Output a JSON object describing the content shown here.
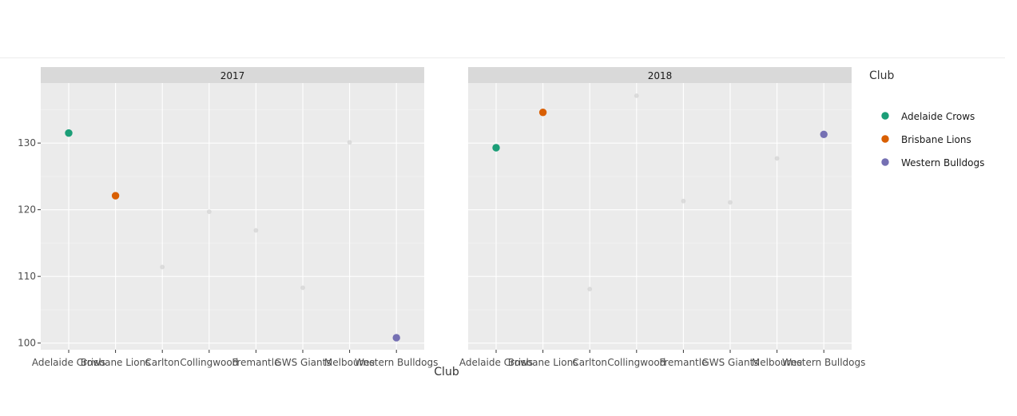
{
  "chart_data": {
    "type": "scatter",
    "facet_by": "Year",
    "xlabel": "Club",
    "ylabel": "",
    "ylim": [
      99,
      139
    ],
    "yticks": [
      100,
      110,
      120,
      130
    ],
    "categories": [
      "Adelaide Crows",
      "Brisbane Lions",
      "Carlton",
      "Collingwood",
      "Fremantle",
      "GWS Giants",
      "Melbourne",
      "Western Bulldogs"
    ],
    "legend": {
      "title": "Club",
      "position": "right",
      "entries": [
        {
          "name": "Adelaide Crows",
          "color": "#1b9e77"
        },
        {
          "name": "Brisbane Lions",
          "color": "#d95f02"
        },
        {
          "name": "Western Bulldogs",
          "color": "#7570b3"
        }
      ]
    },
    "muted_color": "#d3d3d3",
    "grid": true,
    "panels": [
      {
        "title": "2017",
        "points": [
          {
            "x": "Adelaide Crows",
            "y": 131.5,
            "highlight": true
          },
          {
            "x": "Brisbane Lions",
            "y": 122.1,
            "highlight": true
          },
          {
            "x": "Carlton",
            "y": 111.4,
            "highlight": false
          },
          {
            "x": "Collingwood",
            "y": 119.7,
            "highlight": false
          },
          {
            "x": "Fremantle",
            "y": 116.9,
            "highlight": false
          },
          {
            "x": "GWS Giants",
            "y": 108.3,
            "highlight": false
          },
          {
            "x": "Melbourne",
            "y": 130.1,
            "highlight": false
          },
          {
            "x": "Western Bulldogs",
            "y": 100.8,
            "highlight": true
          }
        ]
      },
      {
        "title": "2018",
        "points": [
          {
            "x": "Adelaide Crows",
            "y": 129.3,
            "highlight": true
          },
          {
            "x": "Brisbane Lions",
            "y": 134.6,
            "highlight": true
          },
          {
            "x": "Carlton",
            "y": 108.1,
            "highlight": false
          },
          {
            "x": "Collingwood",
            "y": 137.1,
            "highlight": false
          },
          {
            "x": "Fremantle",
            "y": 121.3,
            "highlight": false
          },
          {
            "x": "GWS Giants",
            "y": 121.1,
            "highlight": false
          },
          {
            "x": "Melbourne",
            "y": 127.7,
            "highlight": false
          },
          {
            "x": "Western Bulldogs",
            "y": 131.3,
            "highlight": true
          }
        ]
      }
    ]
  }
}
